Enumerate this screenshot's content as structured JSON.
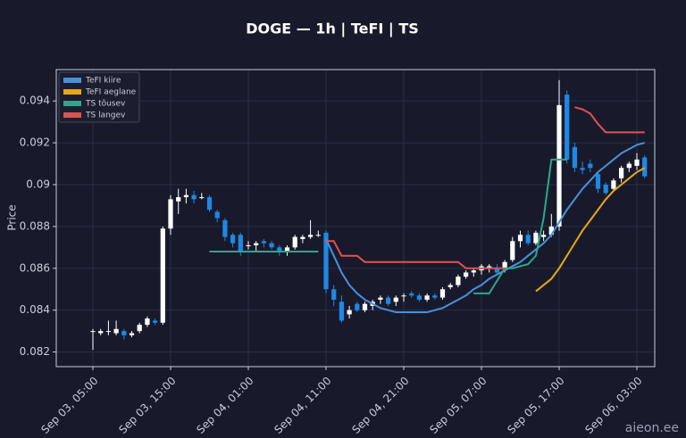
{
  "chart_data": {
    "type": "candlestick",
    "title": "DOGE — 1h  |  TeFI  |  TS",
    "y_label": "Price",
    "watermark": "aieon.ee",
    "categories": [
      "Sep 03, 05:00",
      null,
      null,
      null,
      null,
      null,
      null,
      null,
      null,
      null,
      "Sep 03, 15:00",
      null,
      null,
      null,
      null,
      null,
      null,
      null,
      null,
      null,
      "Sep 04, 01:00",
      null,
      null,
      null,
      null,
      null,
      null,
      null,
      null,
      null,
      "Sep 04, 11:00",
      null,
      null,
      null,
      null,
      null,
      null,
      null,
      null,
      null,
      "Sep 04, 21:00",
      null,
      null,
      null,
      null,
      null,
      null,
      null,
      null,
      null,
      "Sep 05, 07:00",
      null,
      null,
      null,
      null,
      null,
      null,
      null,
      null,
      null,
      "Sep 05, 17:00",
      null,
      null,
      null,
      null,
      null,
      null,
      null,
      null,
      null,
      "Sep 06, 03:00",
      null
    ],
    "candles": {
      "up_color": "#ffffff",
      "down_color": "#1e88e5",
      "open": [
        0.083,
        0.0829,
        0.083,
        0.0829,
        0.083,
        0.0828,
        0.083,
        0.0833,
        0.0835,
        0.0834,
        0.0879,
        0.0892,
        0.0894,
        0.0895,
        0.0894,
        0.0894,
        0.0887,
        0.0883,
        0.0876,
        0.0876,
        0.0871,
        0.0871,
        0.0873,
        0.0872,
        0.087,
        0.0868,
        0.087,
        0.0874,
        0.0875,
        0.0876,
        0.0877,
        0.085,
        0.0844,
        0.0838,
        0.0843,
        0.084,
        0.0842,
        0.0845,
        0.0846,
        0.0844,
        0.0847,
        0.0848,
        0.0847,
        0.0845,
        0.0847,
        0.0846,
        0.0851,
        0.0852,
        0.0856,
        0.0858,
        0.0859,
        0.086,
        0.086,
        0.086,
        0.0864,
        0.0873,
        0.0876,
        0.0872,
        0.0875,
        0.0876,
        0.088,
        0.0943,
        0.0918,
        0.0908,
        0.091,
        0.0905,
        0.09,
        0.0898,
        0.0903,
        0.0908,
        0.0909,
        0.0913
      ],
      "high": [
        0.0831,
        0.0831,
        0.0835,
        0.0835,
        0.0831,
        0.083,
        0.0834,
        0.0837,
        0.0836,
        0.088,
        0.0895,
        0.0898,
        0.0898,
        0.0897,
        0.0896,
        0.0895,
        0.0888,
        0.0884,
        0.0877,
        0.0877,
        0.0873,
        0.0873,
        0.0874,
        0.0873,
        0.0871,
        0.0871,
        0.0876,
        0.0876,
        0.0883,
        0.0878,
        0.0878,
        0.0852,
        0.0847,
        0.0842,
        0.0844,
        0.0844,
        0.0845,
        0.0847,
        0.0847,
        0.0847,
        0.0848,
        0.0849,
        0.0848,
        0.0848,
        0.0848,
        0.0851,
        0.0853,
        0.0857,
        0.0859,
        0.086,
        0.0862,
        0.0862,
        0.0862,
        0.0864,
        0.0875,
        0.0878,
        0.0878,
        0.0878,
        0.0878,
        0.0886,
        0.095,
        0.0945,
        0.092,
        0.0911,
        0.0912,
        0.0906,
        0.0901,
        0.0903,
        0.0909,
        0.0911,
        0.0915,
        0.0914
      ],
      "low": [
        0.0821,
        0.0828,
        0.0828,
        0.0828,
        0.0826,
        0.0827,
        0.0829,
        0.0832,
        0.0833,
        0.0833,
        0.0876,
        0.0886,
        0.0891,
        0.0891,
        0.0893,
        0.0887,
        0.0882,
        0.0873,
        0.087,
        0.0866,
        0.0869,
        0.0868,
        0.087,
        0.0869,
        0.0866,
        0.0866,
        0.0869,
        0.0872,
        0.0874,
        0.0875,
        0.0848,
        0.0842,
        0.0834,
        0.0836,
        0.0839,
        0.0839,
        0.084,
        0.0843,
        0.0842,
        0.0842,
        0.0844,
        0.0846,
        0.0844,
        0.0844,
        0.0845,
        0.0845,
        0.085,
        0.0851,
        0.0855,
        0.0856,
        0.0857,
        0.0858,
        0.0857,
        0.0858,
        0.0863,
        0.087,
        0.0871,
        0.0871,
        0.0873,
        0.0875,
        0.0878,
        0.091,
        0.0906,
        0.0905,
        0.0906,
        0.0896,
        0.0895,
        0.0897,
        0.0901,
        0.0906,
        0.0907,
        0.0903
      ],
      "close": [
        0.083,
        0.083,
        0.083,
        0.0831,
        0.0828,
        0.0829,
        0.0833,
        0.0836,
        0.0834,
        0.0879,
        0.0893,
        0.0894,
        0.0895,
        0.0893,
        0.0894,
        0.0888,
        0.0884,
        0.0875,
        0.0872,
        0.0868,
        0.0871,
        0.0872,
        0.0872,
        0.087,
        0.0868,
        0.087,
        0.0875,
        0.0875,
        0.0876,
        0.0876,
        0.085,
        0.0845,
        0.0835,
        0.084,
        0.084,
        0.0843,
        0.0844,
        0.0846,
        0.0843,
        0.0846,
        0.0847,
        0.0847,
        0.0845,
        0.0847,
        0.0846,
        0.085,
        0.0852,
        0.0856,
        0.0858,
        0.0859,
        0.0861,
        0.0861,
        0.0858,
        0.0863,
        0.0873,
        0.0876,
        0.0872,
        0.0877,
        0.0876,
        0.088,
        0.0938,
        0.0912,
        0.0908,
        0.0907,
        0.0908,
        0.0898,
        0.0896,
        0.0902,
        0.0908,
        0.091,
        0.0912,
        0.0904
      ]
    },
    "series": [
      {
        "name": "TeFI kiire",
        "color": "#4a90d9",
        "values": [
          null,
          null,
          null,
          null,
          null,
          null,
          null,
          null,
          null,
          null,
          null,
          null,
          null,
          null,
          null,
          null,
          null,
          null,
          null,
          null,
          null,
          null,
          null,
          null,
          null,
          null,
          null,
          null,
          null,
          null,
          0.0874,
          0.0866,
          0.0858,
          0.0852,
          0.0848,
          0.0845,
          0.0843,
          0.0841,
          0.084,
          0.0839,
          0.0839,
          0.0839,
          0.0839,
          0.0839,
          0.084,
          0.0841,
          0.0843,
          0.0845,
          0.0847,
          0.085,
          0.0852,
          0.0855,
          0.0857,
          0.0859,
          0.0861,
          0.0863,
          0.0866,
          0.0869,
          0.0872,
          0.0876,
          0.0882,
          0.0888,
          0.0893,
          0.0898,
          0.0902,
          0.0906,
          0.0909,
          0.0912,
          0.0915,
          0.0917,
          0.0919,
          0.092
        ]
      },
      {
        "name": "TeFI aeglane",
        "color": "#e6a817",
        "values": [
          null,
          null,
          null,
          null,
          null,
          null,
          null,
          null,
          null,
          null,
          null,
          null,
          null,
          null,
          null,
          null,
          null,
          null,
          null,
          null,
          null,
          null,
          null,
          null,
          null,
          null,
          null,
          null,
          null,
          null,
          null,
          null,
          null,
          null,
          null,
          null,
          null,
          null,
          null,
          null,
          null,
          null,
          null,
          null,
          null,
          null,
          null,
          null,
          null,
          null,
          null,
          null,
          null,
          null,
          null,
          null,
          null,
          0.0849,
          0.0852,
          0.0855,
          0.086,
          0.0866,
          0.0872,
          0.0878,
          0.0883,
          0.0888,
          0.0893,
          0.0897,
          0.09,
          0.0903,
          0.0906,
          0.0908
        ]
      },
      {
        "name": "TS tõusev",
        "color": "#2aa98a",
        "values": [
          null,
          null,
          null,
          null,
          null,
          null,
          null,
          null,
          null,
          null,
          null,
          null,
          null,
          null,
          null,
          0.0868,
          0.0868,
          0.0868,
          0.0868,
          0.0868,
          0.0868,
          0.0868,
          0.0868,
          0.0868,
          0.0868,
          0.0868,
          0.0868,
          0.0868,
          0.0868,
          0.0868,
          null,
          null,
          null,
          null,
          null,
          null,
          null,
          null,
          null,
          null,
          null,
          null,
          null,
          null,
          null,
          null,
          null,
          null,
          null,
          0.0848,
          0.0848,
          0.0848,
          0.0854,
          0.086,
          0.086,
          0.0861,
          0.0862,
          0.0866,
          0.0884,
          0.0912,
          0.0912,
          0.0912,
          null,
          null,
          null,
          null,
          null,
          null,
          null,
          null,
          null,
          null
        ]
      },
      {
        "name": "TS langev",
        "color": "#e05252",
        "values": [
          null,
          null,
          null,
          null,
          null,
          null,
          null,
          null,
          null,
          null,
          null,
          null,
          null,
          null,
          null,
          null,
          null,
          null,
          null,
          null,
          null,
          null,
          null,
          null,
          null,
          null,
          null,
          null,
          null,
          null,
          0.0873,
          0.0873,
          0.0866,
          0.0866,
          0.0866,
          0.0863,
          0.0863,
          0.0863,
          0.0863,
          0.0863,
          0.0863,
          0.0863,
          0.0863,
          0.0863,
          0.0863,
          0.0863,
          0.0863,
          0.0863,
          0.086,
          0.086,
          0.086,
          0.086,
          0.086,
          0.086,
          null,
          null,
          null,
          null,
          null,
          null,
          null,
          null,
          0.0937,
          0.0936,
          0.0934,
          0.0929,
          0.0925,
          0.0925,
          0.0925,
          0.0925,
          0.0925,
          0.0925
        ]
      }
    ],
    "ylim": [
      0.0813,
      0.0955
    ],
    "yticks": [
      0.082,
      0.084,
      0.086,
      0.088,
      0.09,
      0.092,
      0.094
    ],
    "grid": true,
    "legend": "upper left"
  }
}
